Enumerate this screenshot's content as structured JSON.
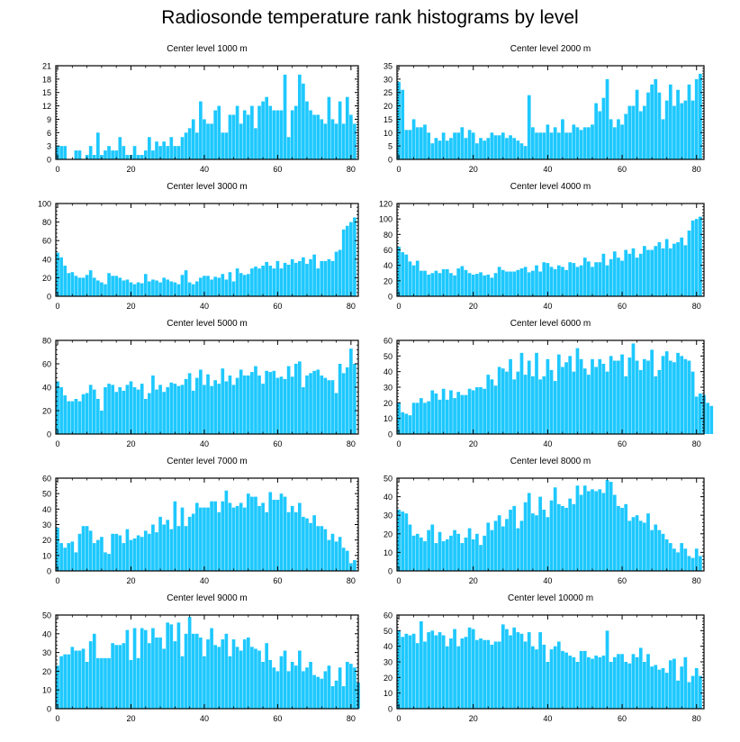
{
  "title": "Radiosonde temperature rank histograms by level",
  "colors": {
    "bar": "#1EC8FF",
    "axis": "#000000",
    "background": "#FFFFFF"
  },
  "chart_data": [
    {
      "type": "bar",
      "title": "Center level 1000 m",
      "ylim": [
        0,
        21
      ],
      "yticks": [
        0,
        3,
        6,
        9,
        12,
        15,
        18,
        21
      ],
      "xlim": [
        -0.5,
        82
      ],
      "xticks": [
        0,
        20,
        40,
        60,
        80
      ],
      "values": [
        3,
        3,
        3,
        0,
        0,
        2,
        2,
        0,
        1,
        3,
        1,
        6,
        1,
        2,
        3,
        2,
        2,
        5,
        3,
        1,
        1,
        3,
        1,
        1,
        2,
        5,
        2,
        4,
        3,
        4,
        3,
        5,
        3,
        3,
        5,
        6,
        7,
        9,
        6,
        13,
        9,
        8,
        8,
        11,
        12,
        6,
        6,
        10,
        10,
        12,
        8,
        11,
        10,
        12,
        7,
        12,
        13,
        14,
        12,
        11,
        11,
        11,
        19,
        5,
        11,
        12,
        19,
        17,
        13,
        11,
        10,
        10,
        9,
        8,
        14,
        9,
        8,
        13,
        8,
        14,
        10,
        8
      ]
    },
    {
      "type": "bar",
      "title": "Center level 2000 m",
      "ylim": [
        0,
        35
      ],
      "yticks": [
        0,
        5,
        10,
        15,
        20,
        25,
        30,
        35
      ],
      "xlim": [
        -0.5,
        82
      ],
      "xticks": [
        0,
        20,
        40,
        60,
        80
      ],
      "values": [
        29,
        26,
        11,
        11,
        15,
        12,
        12,
        13,
        10,
        6,
        8,
        7,
        10,
        7,
        8,
        10,
        10,
        12,
        8,
        11,
        10,
        6,
        8,
        7,
        8,
        10,
        9,
        9,
        10,
        8,
        9,
        8,
        7,
        6,
        5,
        24,
        12,
        10,
        10,
        10,
        13,
        10,
        12,
        10,
        15,
        10,
        10,
        13,
        12,
        11,
        12,
        12,
        13,
        21,
        18,
        23,
        30,
        15,
        12,
        15,
        13,
        17,
        20,
        20,
        26,
        18,
        20,
        25,
        28,
        30,
        25,
        15,
        22,
        28,
        20,
        26,
        21,
        22,
        28,
        22,
        30,
        32
      ]
    },
    {
      "type": "bar",
      "title": "Center level 3000 m",
      "ylim": [
        0,
        100
      ],
      "yticks": [
        0,
        20,
        40,
        60,
        80,
        100
      ],
      "xlim": [
        -0.5,
        82
      ],
      "xticks": [
        0,
        20,
        40,
        60,
        80
      ],
      "values": [
        47,
        42,
        33,
        25,
        26,
        22,
        20,
        20,
        23,
        28,
        20,
        17,
        15,
        13,
        25,
        22,
        22,
        20,
        17,
        18,
        15,
        13,
        15,
        14,
        24,
        16,
        18,
        17,
        15,
        20,
        18,
        16,
        15,
        13,
        23,
        28,
        15,
        13,
        16,
        20,
        22,
        22,
        18,
        21,
        20,
        24,
        18,
        26,
        16,
        30,
        25,
        23,
        24,
        30,
        32,
        30,
        33,
        37,
        33,
        30,
        38,
        30,
        36,
        34,
        40,
        36,
        38,
        42,
        35,
        40,
        45,
        30,
        38,
        38,
        40,
        38,
        48,
        50,
        72,
        76,
        80,
        85
      ]
    },
    {
      "type": "bar",
      "title": "Center level 4000 m",
      "ylim": [
        0,
        120
      ],
      "yticks": [
        0,
        20,
        40,
        60,
        80,
        100,
        120
      ],
      "xlim": [
        -0.5,
        82
      ],
      "xticks": [
        0,
        20,
        40,
        60,
        80
      ],
      "values": [
        64,
        57,
        54,
        45,
        40,
        46,
        33,
        33,
        28,
        30,
        33,
        30,
        35,
        35,
        30,
        27,
        36,
        39,
        34,
        30,
        28,
        29,
        31,
        27,
        28,
        24,
        30,
        38,
        34,
        32,
        32,
        32,
        34,
        36,
        38,
        31,
        33,
        40,
        32,
        44,
        43,
        38,
        35,
        40,
        38,
        34,
        44,
        43,
        38,
        40,
        50,
        45,
        38,
        44,
        44,
        55,
        40,
        48,
        58,
        50,
        46,
        60,
        55,
        62,
        50,
        55,
        65,
        60,
        60,
        65,
        70,
        62,
        74,
        62,
        68,
        70,
        76,
        66,
        85,
        98,
        100,
        103
      ]
    },
    {
      "type": "bar",
      "title": "Center level 5000 m",
      "ylim": [
        0,
        80
      ],
      "yticks": [
        0,
        20,
        40,
        60,
        80
      ],
      "xlim": [
        -0.5,
        82
      ],
      "xticks": [
        0,
        20,
        40,
        60,
        80
      ],
      "values": [
        45,
        40,
        33,
        28,
        28,
        30,
        28,
        34,
        35,
        42,
        38,
        30,
        20,
        40,
        43,
        42,
        36,
        40,
        37,
        42,
        45,
        40,
        38,
        43,
        30,
        35,
        50,
        38,
        42,
        36,
        40,
        44,
        43,
        41,
        42,
        47,
        52,
        37,
        48,
        55,
        42,
        51,
        41,
        46,
        43,
        56,
        45,
        50,
        42,
        48,
        55,
        50,
        50,
        53,
        58,
        50,
        43,
        54,
        53,
        54,
        48,
        49,
        47,
        58,
        49,
        60,
        62,
        40,
        50,
        52,
        54,
        55,
        50,
        48,
        46,
        46,
        35,
        60,
        52,
        57,
        73,
        60
      ]
    },
    {
      "type": "bar",
      "title": "Center level 6000 m",
      "ylim": [
        0,
        60
      ],
      "yticks": [
        0,
        10,
        20,
        30,
        40,
        50,
        60
      ],
      "xlim": [
        -0.5,
        82
      ],
      "xticks": [
        0,
        20,
        40,
        60,
        80
      ],
      "values": [
        20,
        14,
        13,
        12,
        20,
        20,
        23,
        20,
        21,
        28,
        26,
        22,
        29,
        22,
        28,
        23,
        27,
        25,
        25,
        29,
        28,
        30,
        30,
        29,
        38,
        35,
        31,
        43,
        42,
        40,
        48,
        35,
        40,
        52,
        38,
        47,
        37,
        52,
        35,
        37,
        48,
        41,
        34,
        51,
        43,
        46,
        50,
        40,
        55,
        48,
        42,
        38,
        48,
        43,
        48,
        45,
        40,
        50,
        47,
        47,
        51,
        37,
        49,
        58,
        47,
        41,
        48,
        47,
        54,
        37,
        41,
        50,
        53,
        47,
        46,
        52,
        50,
        48,
        47,
        40,
        24,
        26,
        25,
        20,
        18
      ]
    },
    {
      "type": "bar",
      "title": "Center level 7000 m",
      "ylim": [
        0,
        60
      ],
      "yticks": [
        0,
        10,
        20,
        30,
        40,
        50,
        60
      ],
      "xlim": [
        -0.5,
        82
      ],
      "xticks": [
        0,
        20,
        40,
        60,
        80
      ],
      "values": [
        28,
        18,
        15,
        18,
        19,
        12,
        24,
        29,
        29,
        26,
        18,
        20,
        22,
        12,
        11,
        24,
        24,
        23,
        18,
        27,
        20,
        21,
        23,
        22,
        26,
        24,
        30,
        25,
        35,
        30,
        33,
        27,
        45,
        29,
        41,
        29,
        35,
        37,
        44,
        41,
        41,
        41,
        45,
        45,
        38,
        45,
        52,
        44,
        41,
        42,
        44,
        41,
        50,
        48,
        48,
        42,
        44,
        38,
        51,
        46,
        46,
        50,
        48,
        38,
        42,
        38,
        44,
        35,
        34,
        31,
        36,
        29,
        29,
        27,
        20,
        24,
        19,
        22,
        15,
        13,
        5,
        7
      ]
    },
    {
      "type": "bar",
      "title": "Center level 8000 m",
      "ylim": [
        0,
        50
      ],
      "yticks": [
        0,
        10,
        20,
        30,
        40,
        50
      ],
      "xlim": [
        -0.5,
        82
      ],
      "xticks": [
        0,
        20,
        40,
        60,
        80
      ],
      "values": [
        33,
        32,
        31,
        25,
        19,
        20,
        18,
        16,
        22,
        25,
        15,
        21,
        16,
        17,
        19,
        22,
        20,
        15,
        18,
        23,
        17,
        20,
        14,
        19,
        26,
        22,
        27,
        30,
        24,
        28,
        33,
        35,
        23,
        27,
        37,
        42,
        31,
        30,
        40,
        33,
        29,
        38,
        45,
        36,
        35,
        34,
        39,
        36,
        46,
        41,
        46,
        43,
        44,
        43,
        44,
        42,
        49,
        48,
        41,
        35,
        34,
        36,
        27,
        29,
        30,
        27,
        26,
        31,
        22,
        25,
        22,
        20,
        17,
        15,
        12,
        10,
        15,
        12,
        8,
        7,
        12,
        8
      ]
    },
    {
      "type": "bar",
      "title": "Center level 9000 m",
      "ylim": [
        0,
        50
      ],
      "yticks": [
        0,
        10,
        20,
        30,
        40,
        50
      ],
      "xlim": [
        -0.5,
        82
      ],
      "xticks": [
        0,
        20,
        40,
        60,
        80
      ],
      "values": [
        23,
        28,
        29,
        29,
        33,
        31,
        31,
        32,
        25,
        36,
        40,
        27,
        27,
        27,
        27,
        35,
        34,
        34,
        35,
        42,
        26,
        43,
        27,
        43,
        42,
        35,
        43,
        38,
        38,
        32,
        46,
        45,
        36,
        46,
        28,
        40,
        49,
        40,
        40,
        38,
        28,
        37,
        43,
        34,
        33,
        37,
        40,
        28,
        37,
        33,
        31,
        37,
        38,
        33,
        32,
        31,
        25,
        35,
        26,
        22,
        20,
        28,
        31,
        20,
        25,
        23,
        31,
        20,
        22,
        25,
        18,
        17,
        16,
        20,
        23,
        12,
        15,
        22,
        12,
        25,
        24,
        22,
        14
      ]
    },
    {
      "type": "bar",
      "title": "Center level 10000 m",
      "ylim": [
        0,
        60
      ],
      "yticks": [
        0,
        10,
        20,
        30,
        40,
        50,
        60
      ],
      "xlim": [
        -0.5,
        82
      ],
      "xticks": [
        0,
        20,
        40,
        60,
        80
      ],
      "values": [
        50,
        46,
        48,
        47,
        48,
        42,
        56,
        43,
        49,
        50,
        47,
        49,
        47,
        40,
        45,
        51,
        40,
        45,
        46,
        52,
        51,
        44,
        45,
        44,
        44,
        41,
        43,
        43,
        54,
        51,
        47,
        52,
        49,
        48,
        43,
        49,
        40,
        38,
        49,
        41,
        30,
        38,
        40,
        43,
        37,
        36,
        34,
        33,
        30,
        37,
        37,
        33,
        32,
        34,
        33,
        34,
        50,
        30,
        33,
        35,
        35,
        30,
        29,
        35,
        33,
        39,
        30,
        35,
        27,
        28,
        25,
        26,
        23,
        31,
        32,
        18,
        27,
        33,
        17,
        21,
        26,
        21
      ]
    }
  ]
}
